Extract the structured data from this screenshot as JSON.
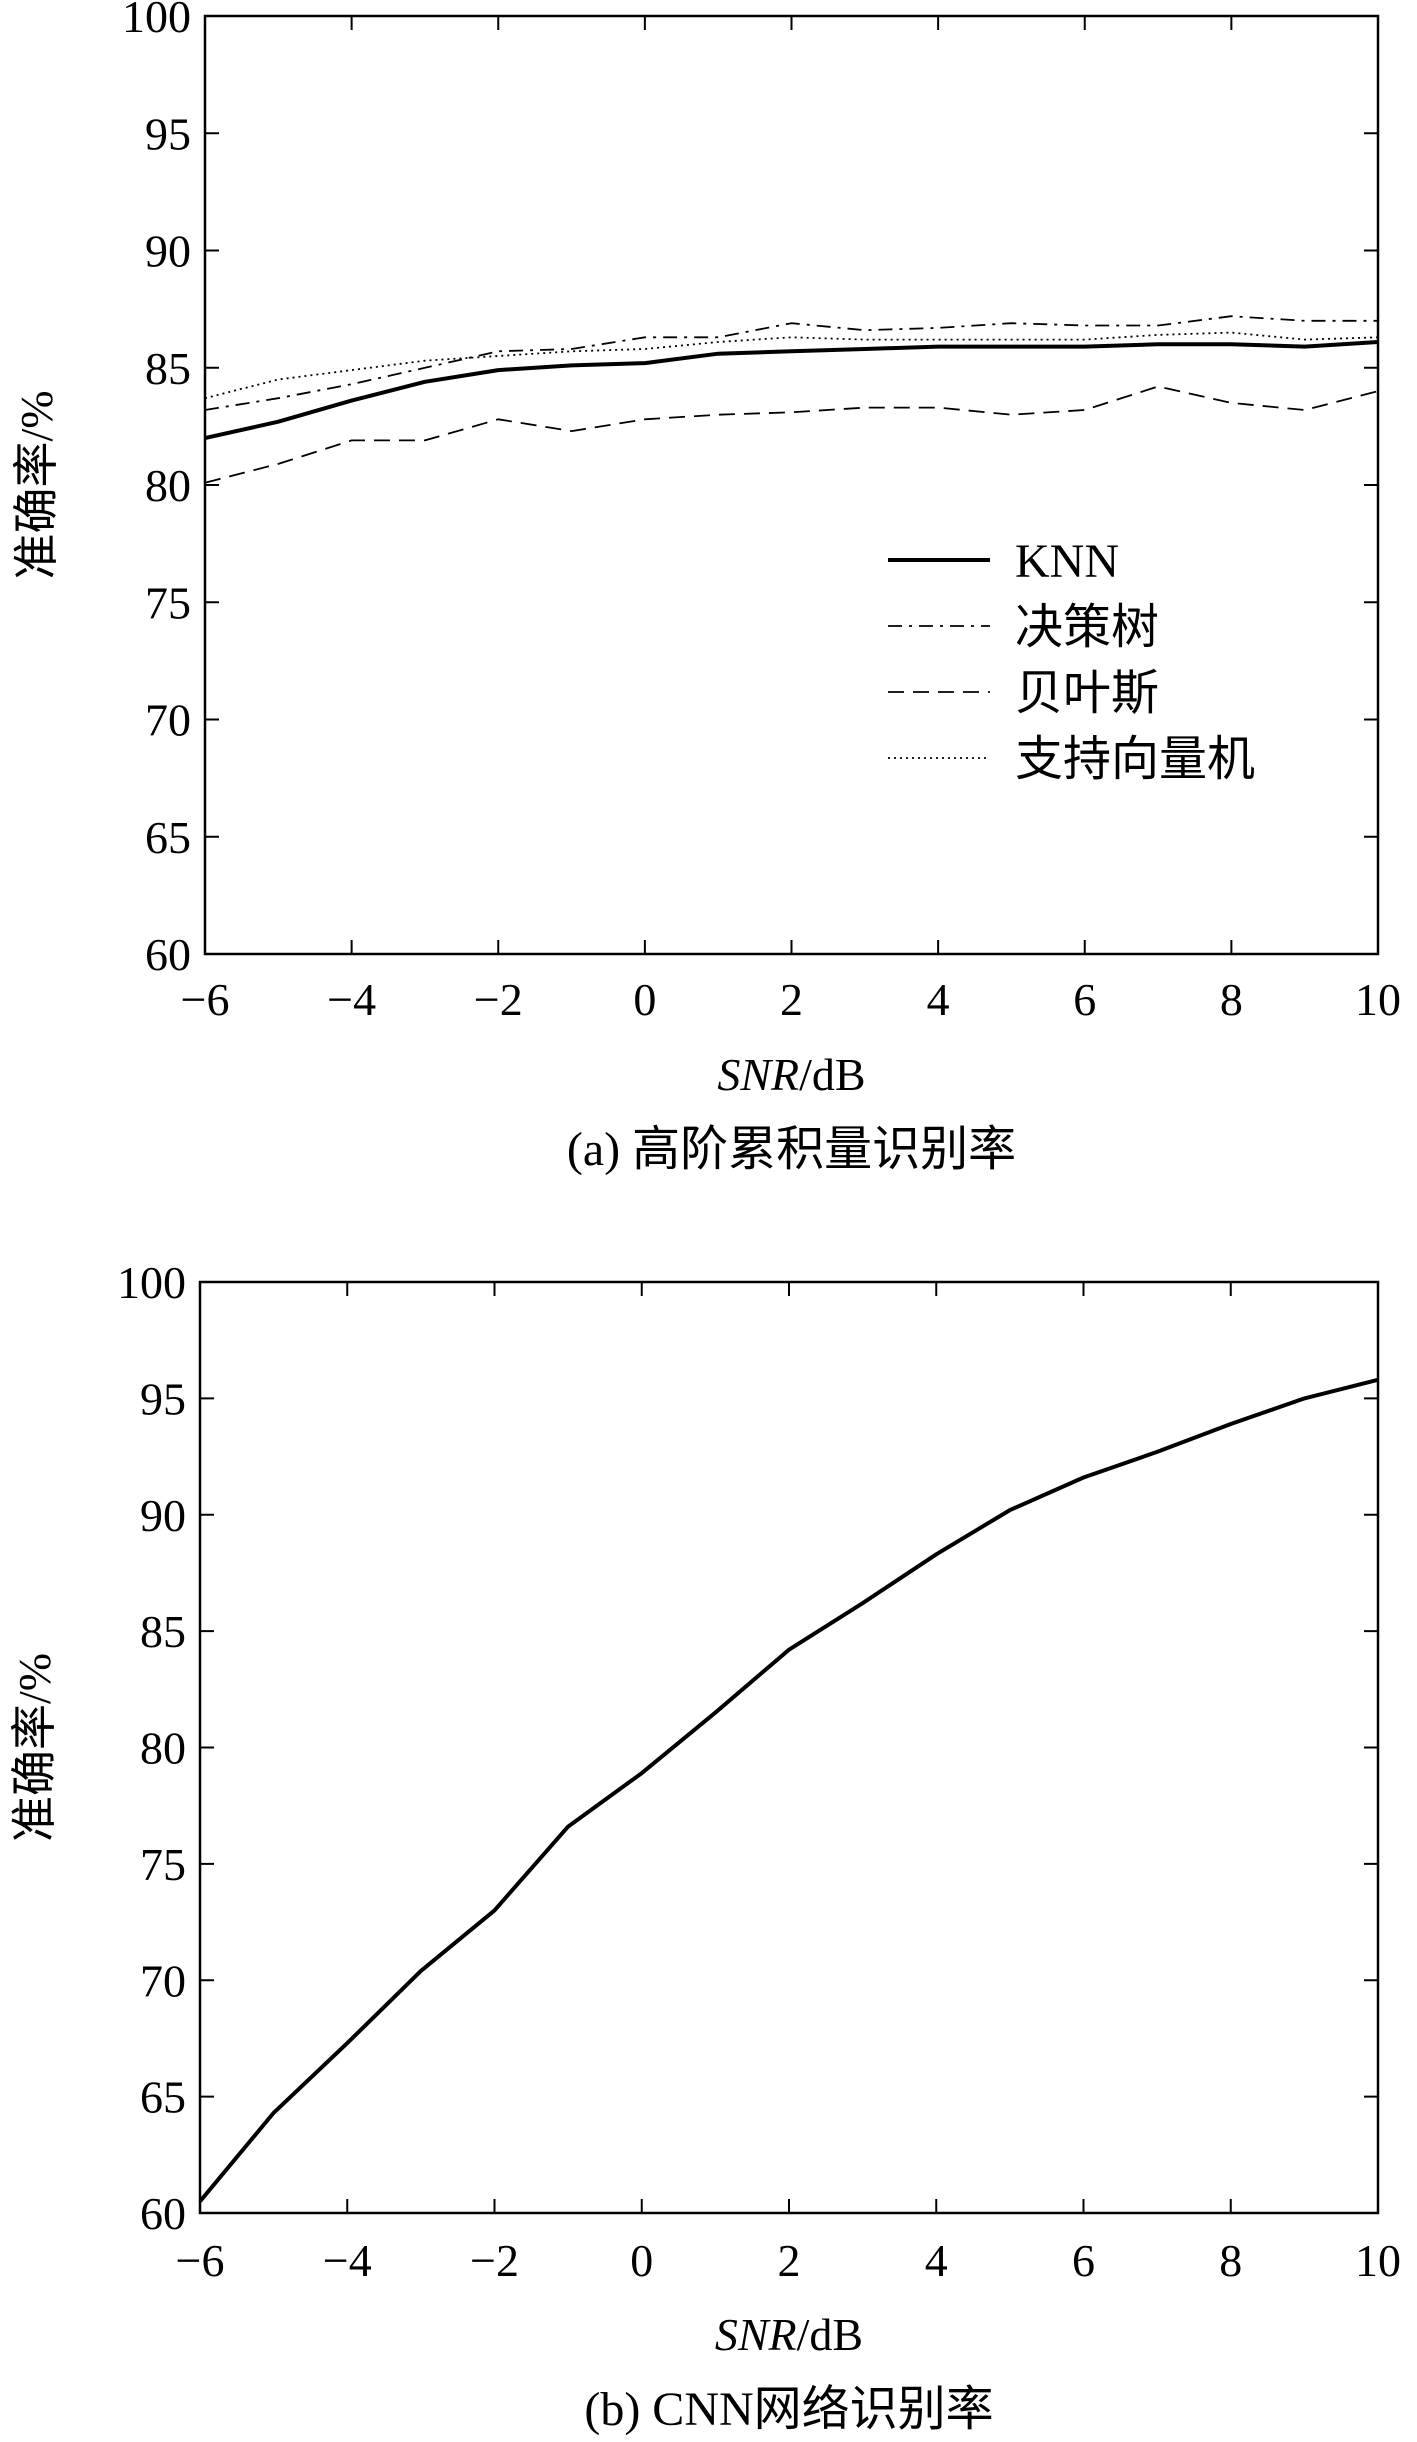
{
  "chart_data": [
    {
      "type": "line",
      "caption": "(a) 高阶累积量识别率",
      "xlabel_italic": "SNR",
      "xlabel_rest": "/dB",
      "ylabel": "准确率/%",
      "xlim": [
        -6,
        10
      ],
      "ylim": [
        60,
        100
      ],
      "x_ticks": [
        -6,
        -4,
        -2,
        0,
        2,
        4,
        6,
        8,
        10
      ],
      "y_ticks": [
        60,
        65,
        70,
        75,
        80,
        85,
        90,
        95,
        100
      ],
      "legend_position": "center-right",
      "x": [
        -6,
        -5,
        -4,
        -3,
        -2,
        -1,
        0,
        1,
        2,
        3,
        4,
        5,
        6,
        7,
        8,
        9,
        10
      ],
      "series": [
        {
          "name": "KNN",
          "style": "solid",
          "values": [
            82.0,
            82.7,
            83.6,
            84.4,
            84.9,
            85.1,
            85.2,
            85.6,
            85.7,
            85.8,
            85.9,
            85.9,
            85.9,
            86.0,
            86.0,
            85.9,
            86.1
          ]
        },
        {
          "name": "决策树",
          "style": "dashdot",
          "values": [
            83.2,
            83.7,
            84.3,
            85.0,
            85.7,
            85.8,
            86.3,
            86.3,
            86.9,
            86.6,
            86.7,
            86.9,
            86.8,
            86.8,
            87.2,
            87.0,
            87.0
          ]
        },
        {
          "name": "贝叶斯",
          "style": "dashed",
          "values": [
            80.1,
            80.9,
            81.9,
            81.9,
            82.8,
            82.3,
            82.8,
            83.0,
            83.1,
            83.3,
            83.3,
            83.0,
            83.2,
            84.2,
            83.5,
            83.2,
            84.0
          ]
        },
        {
          "name": "支持向量机",
          "style": "dotted",
          "values": [
            83.7,
            84.5,
            84.9,
            85.3,
            85.5,
            85.7,
            85.8,
            86.1,
            86.3,
            86.2,
            86.2,
            86.2,
            86.2,
            86.4,
            86.5,
            86.2,
            86.3
          ]
        }
      ]
    },
    {
      "type": "line",
      "caption": "(b) CNN网络识别率",
      "xlabel_italic": "SNR",
      "xlabel_rest": "/dB",
      "ylabel": "准确率/%",
      "xlim": [
        -6,
        10
      ],
      "ylim": [
        60,
        100
      ],
      "x_ticks": [
        -6,
        -4,
        -2,
        0,
        2,
        4,
        6,
        8,
        10
      ],
      "y_ticks": [
        60,
        65,
        70,
        75,
        80,
        85,
        90,
        95,
        100
      ],
      "x": [
        -6,
        -5,
        -4,
        -3,
        -2,
        -1,
        0,
        1,
        2,
        3,
        4,
        5,
        6,
        7,
        8,
        9,
        10
      ],
      "series": [
        {
          "style": "solid",
          "values": [
            60.5,
            64.3,
            67.3,
            70.4,
            73.0,
            76.6,
            78.9,
            81.5,
            84.2,
            86.2,
            88.3,
            90.2,
            91.6,
            92.7,
            93.9,
            95.0,
            95.8
          ]
        }
      ]
    }
  ]
}
